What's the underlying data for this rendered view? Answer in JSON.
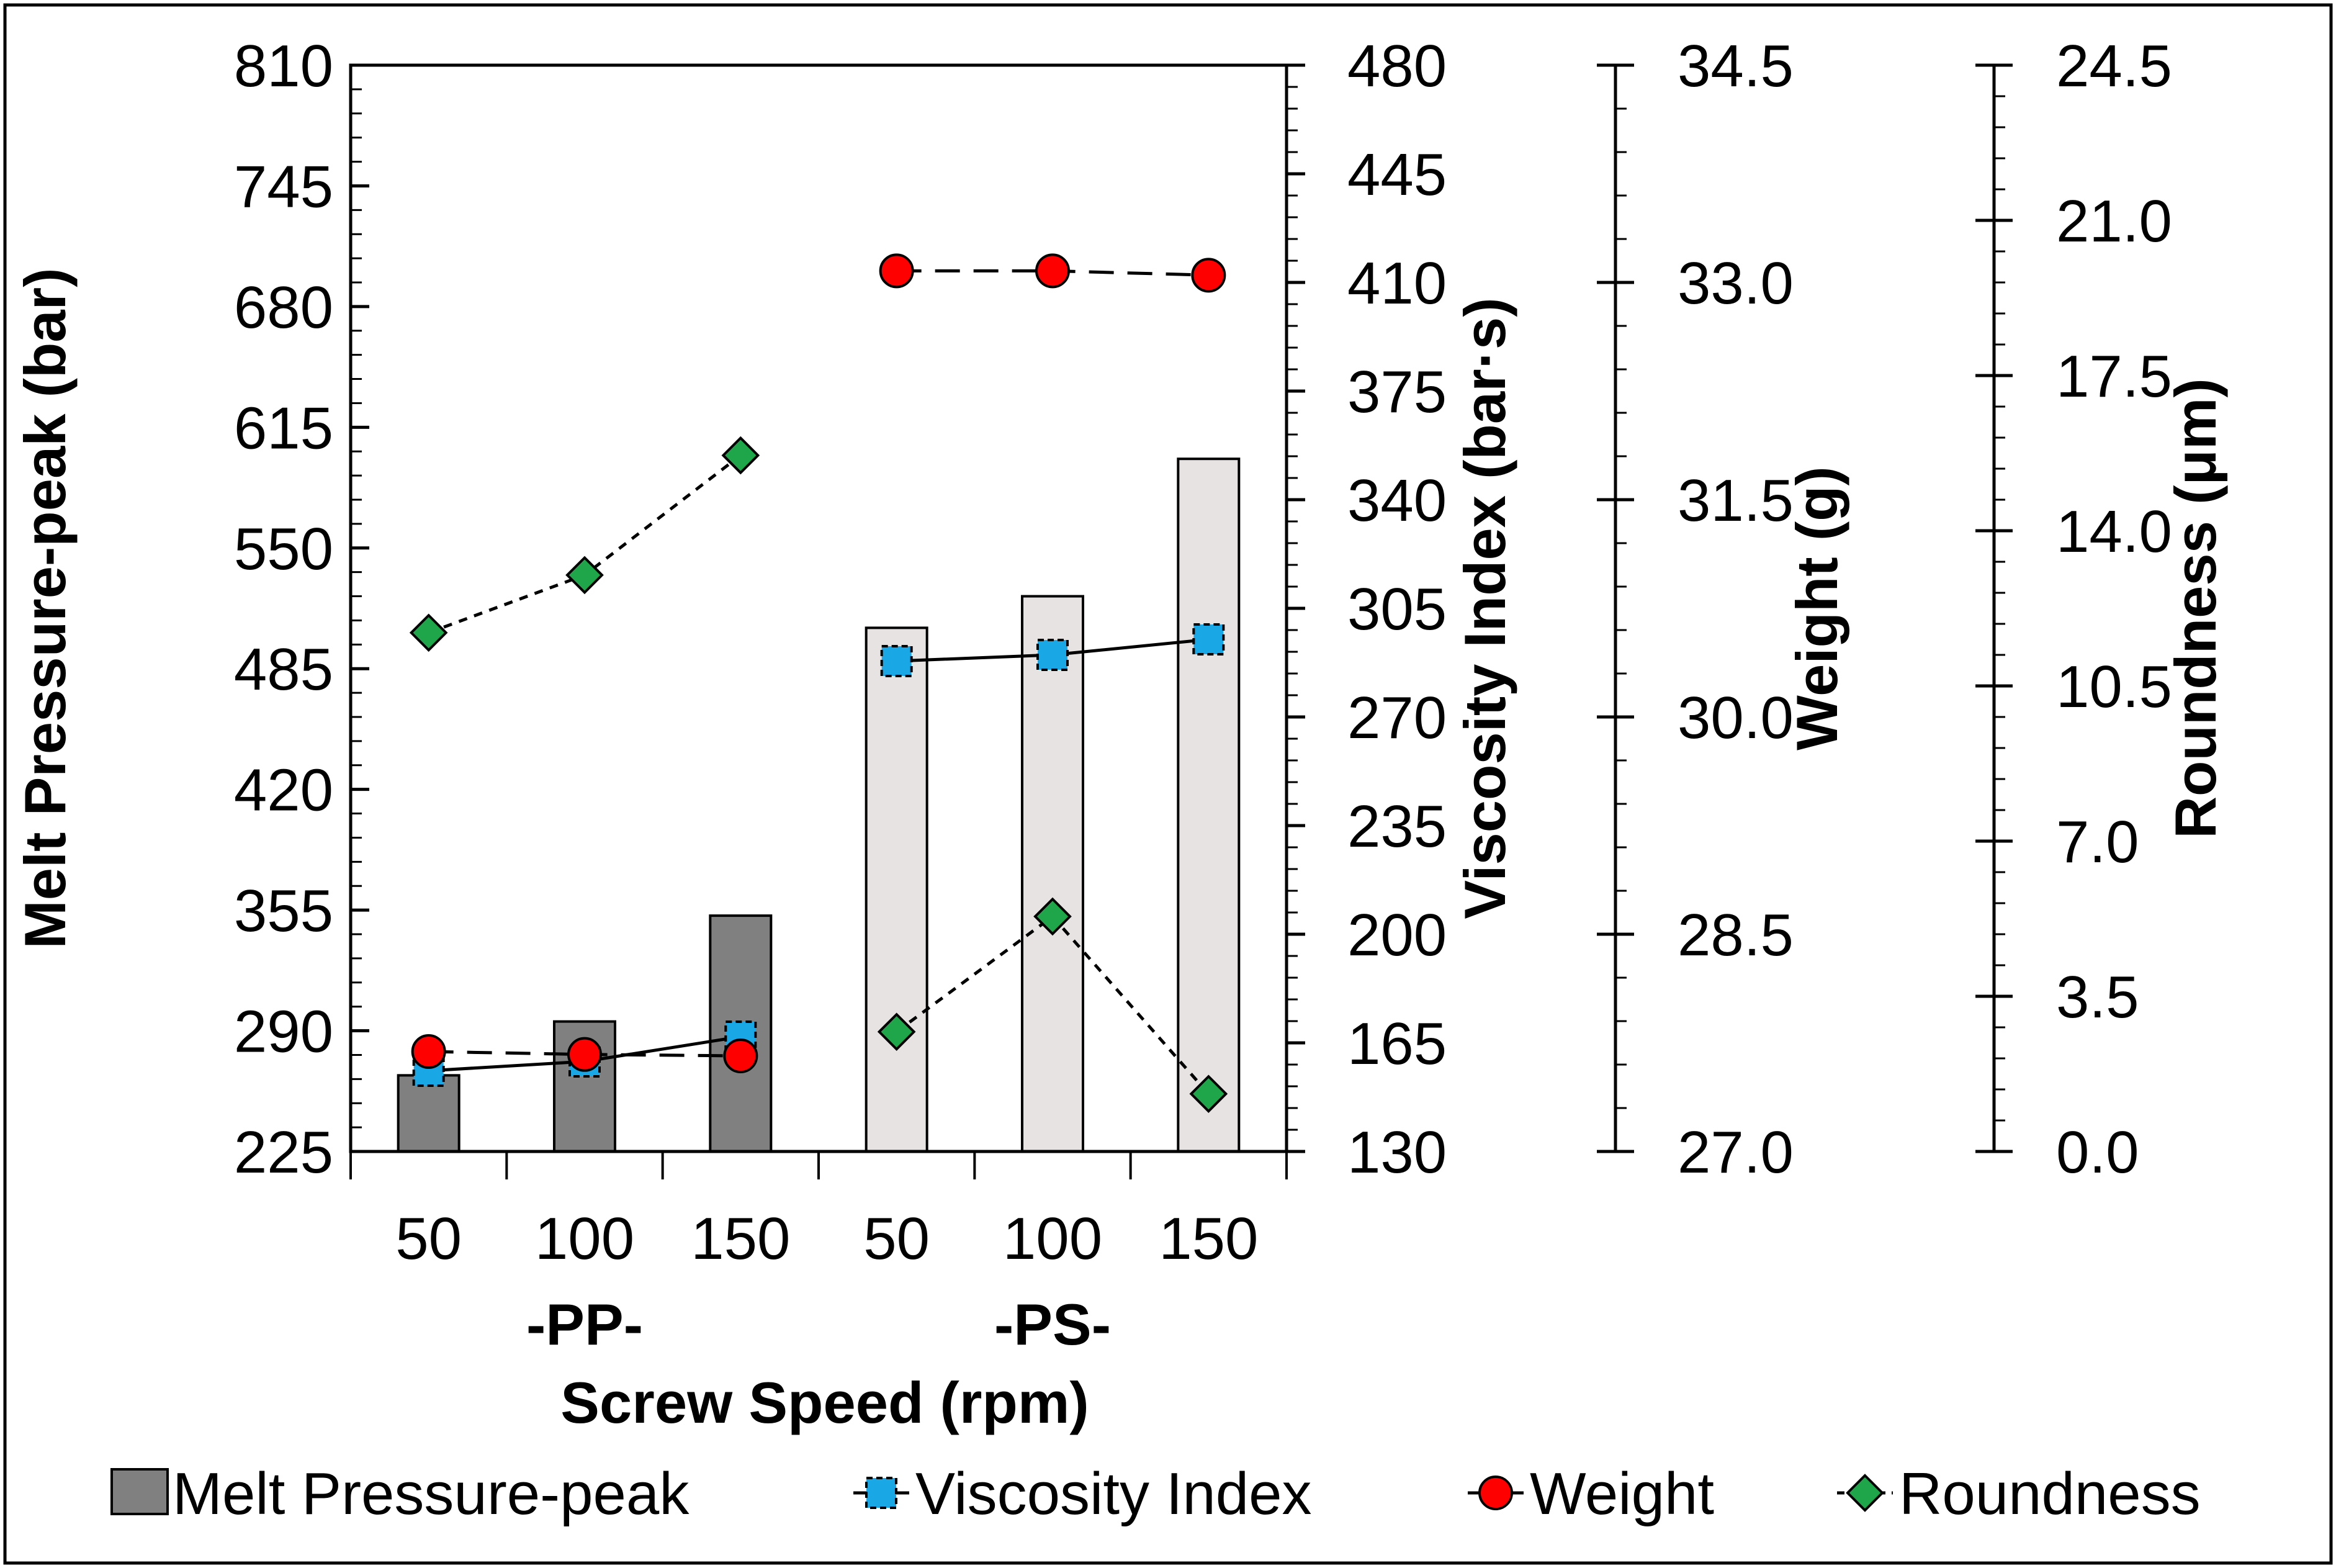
{
  "chart_data": {
    "type": "bar",
    "xlabel": "Screw Speed (rpm)",
    "groups": [
      "-PP-",
      "-PS-"
    ],
    "categories": [
      "50",
      "100",
      "150",
      "50",
      "100",
      "150"
    ],
    "category_group": [
      0,
      0,
      0,
      1,
      1,
      1
    ],
    "series": [
      {
        "name": "Melt Pressure-peak",
        "kind": "bar",
        "axis": "melt",
        "colors": [
          "#808080",
          "#808080",
          "#808080",
          "#e8e3e3",
          "#e8e3e3",
          "#e8e3e3"
        ],
        "values": [
          266,
          295,
          352,
          507,
          524,
          598
        ]
      },
      {
        "name": "Viscosity Index",
        "kind": "line",
        "axis": "viscosity",
        "color": "#1aa7e6",
        "line_style": "solid",
        "marker": "square",
        "segments": [
          [
            0,
            1,
            2
          ],
          [
            3,
            4,
            5
          ]
        ],
        "values": [
          156,
          159,
          167,
          288,
          290,
          295
        ]
      },
      {
        "name": "Weight",
        "kind": "line",
        "axis": "weight",
        "color": "#ff0000",
        "line_style": "dashed",
        "marker": "circle",
        "segments": [
          [
            0,
            1,
            2
          ],
          [
            3,
            4,
            5
          ]
        ],
        "values": [
          27.69,
          27.67,
          27.66,
          33.08,
          33.08,
          33.05
        ]
      },
      {
        "name": "Roundness",
        "kind": "line",
        "axis": "roundness",
        "color": "#1fa64a",
        "line_style": "dotted",
        "marker": "diamond",
        "segments": [
          [
            0,
            1,
            2
          ],
          [
            3,
            4,
            5
          ]
        ],
        "values": [
          11.7,
          13.0,
          15.7,
          2.7,
          5.3,
          1.3
        ]
      }
    ],
    "axes": [
      {
        "id": "melt",
        "title": "Melt Pressure-peak (bar)",
        "ylim": [
          225,
          810
        ],
        "ticks": [
          "225",
          "290",
          "355",
          "420",
          "485",
          "550",
          "615",
          "680",
          "745",
          "810"
        ]
      },
      {
        "id": "viscosity",
        "title": "Viscosity Index (bar·s)",
        "ylim": [
          130,
          480
        ],
        "ticks": [
          "130",
          "165",
          "200",
          "235",
          "270",
          "305",
          "340",
          "375",
          "410",
          "445",
          "480"
        ]
      },
      {
        "id": "weight",
        "title": "Weight (g)",
        "ylim": [
          27.0,
          34.5
        ],
        "ticks": [
          "27.0",
          "28.5",
          "30.0",
          "31.5",
          "33.0",
          "34.5"
        ]
      },
      {
        "id": "roundness",
        "title": "Roundness (μm)",
        "ylim": [
          0.0,
          24.5
        ],
        "ticks": [
          "0.0",
          "3.5",
          "7.0",
          "10.5",
          "14.0",
          "17.5",
          "21.0",
          "24.5"
        ]
      }
    ],
    "legend": {
      "position": "bottom",
      "items": [
        "Melt Pressure-peak",
        "Viscosity Index",
        "Weight",
        "Roundness"
      ]
    },
    "grid": false
  }
}
